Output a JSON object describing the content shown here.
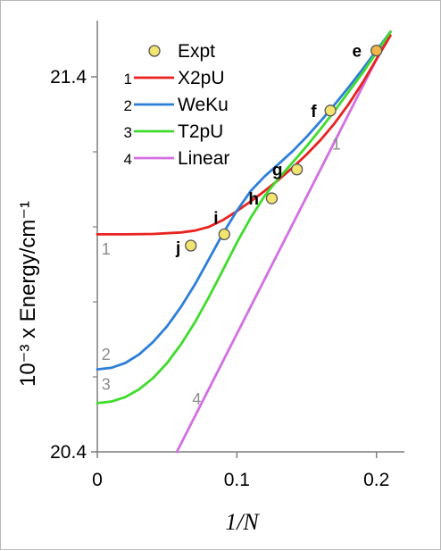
{
  "chart_data": {
    "type": "line",
    "xlabel": "1/N",
    "ylabel": "10⁻³ x Energy/cm⁻¹",
    "xlim": [
      0,
      0.22
    ],
    "ylim": [
      20.4,
      21.55
    ],
    "x_ticks": [
      {
        "value": 0,
        "label": "0"
      },
      {
        "value": 0.1,
        "label": "0.1"
      },
      {
        "value": 0.2,
        "label": "0.2"
      }
    ],
    "y_ticks": [
      {
        "value": 20.4,
        "label": "20.4"
      },
      {
        "value": 21.4,
        "label": "21.4"
      }
    ],
    "y_minor_ticks": [
      20.6,
      20.8,
      21.0,
      21.2
    ],
    "legend": {
      "position": "top-left",
      "entries": [
        {
          "marker": "",
          "label": "Expt",
          "kind": "point"
        },
        {
          "marker": "1",
          "label": "X2pU",
          "kind": "line",
          "series": 0
        },
        {
          "marker": "2",
          "label": "WeKu",
          "kind": "line",
          "series": 1
        },
        {
          "marker": "3",
          "label": "T2pU",
          "kind": "line",
          "series": 2
        },
        {
          "marker": "4",
          "label": "Linear",
          "kind": "line",
          "series": 3
        }
      ]
    },
    "series": [
      {
        "name": "X2pU",
        "color": "#e8231f",
        "label": "1",
        "label_pos": {
          "x": 0.003,
          "y": 20.94
        },
        "label_pos2": {
          "x": 0.168,
          "y": 21.22
        },
        "x": [
          0,
          0.02,
          0.04,
          0.06,
          0.07,
          0.08,
          0.09,
          0.1,
          0.11,
          0.12,
          0.13,
          0.14,
          0.15,
          0.16,
          0.17,
          0.18,
          0.19,
          0.2,
          0.21
        ],
        "y": [
          20.98,
          20.98,
          20.981,
          20.985,
          20.99,
          21.0,
          21.018,
          21.042,
          21.068,
          21.096,
          21.126,
          21.158,
          21.193,
          21.232,
          21.276,
          21.327,
          21.384,
          21.447,
          21.51
        ]
      },
      {
        "name": "WeKu",
        "color": "#2e7fd8",
        "label": "2",
        "label_pos": {
          "x": 0.003,
          "y": 20.66
        },
        "x": [
          0,
          0.01,
          0.02,
          0.03,
          0.04,
          0.05,
          0.06,
          0.07,
          0.08,
          0.09,
          0.1,
          0.11,
          0.12,
          0.13,
          0.14,
          0.15,
          0.16,
          0.17,
          0.18,
          0.19,
          0.2,
          0.21
        ],
        "y": [
          20.62,
          20.624,
          20.637,
          20.66,
          20.693,
          20.735,
          20.787,
          20.847,
          20.914,
          20.982,
          21.043,
          21.096,
          21.135,
          21.168,
          21.202,
          21.24,
          21.282,
          21.326,
          21.372,
          21.42,
          21.47,
          21.52
        ]
      },
      {
        "name": "T2pU",
        "color": "#3fdc2c",
        "label": "3",
        "label_pos": {
          "x": 0.003,
          "y": 20.58
        },
        "x": [
          0,
          0.01,
          0.02,
          0.03,
          0.04,
          0.05,
          0.06,
          0.07,
          0.08,
          0.09,
          0.1,
          0.11,
          0.12,
          0.13,
          0.14,
          0.15,
          0.16,
          0.17,
          0.18,
          0.19,
          0.2,
          0.21
        ],
        "y": [
          20.53,
          20.534,
          20.546,
          20.567,
          20.597,
          20.637,
          20.687,
          20.746,
          20.813,
          20.885,
          20.958,
          21.025,
          21.083,
          21.13,
          21.172,
          21.215,
          21.261,
          21.309,
          21.36,
          21.41,
          21.465,
          21.52
        ]
      },
      {
        "name": "Linear",
        "color": "#d36fe3",
        "label": "4",
        "label_pos": {
          "x": 0.068,
          "y": 20.54
        },
        "x": [
          0.057,
          0.21
        ],
        "y": [
          20.4,
          21.52
        ]
      }
    ],
    "points": [
      {
        "label": "e",
        "x": 0.2,
        "y": 21.47,
        "lx": -0.014,
        "ly": 0.0,
        "fill": "#f0b64a"
      },
      {
        "label": "f",
        "x": 0.167,
        "y": 21.31,
        "lx": -0.012,
        "ly": 0.0,
        "fill": "#f2e46f"
      },
      {
        "label": "g",
        "x": 0.143,
        "y": 21.153,
        "lx": -0.014,
        "ly": 0.0,
        "fill": "#f2e46f"
      },
      {
        "label": "h",
        "x": 0.125,
        "y": 21.076,
        "lx": -0.013,
        "ly": 0.0,
        "fill": "#f2e46f"
      },
      {
        "label": "i",
        "x": 0.091,
        "y": 20.98,
        "lx": -0.006,
        "ly": 0.045,
        "fill": "#f2e46f"
      },
      {
        "label": "j",
        "x": 0.067,
        "y": 20.95,
        "lx": -0.009,
        "ly": -0.005,
        "fill": "#f2e46f"
      }
    ]
  }
}
